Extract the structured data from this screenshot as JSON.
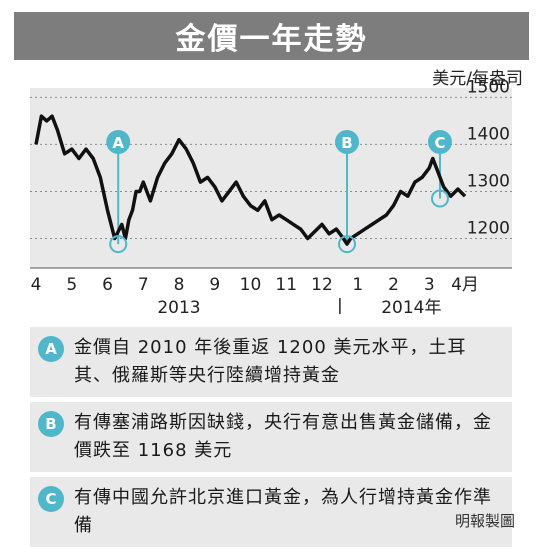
{
  "header": {
    "title": "金價一年走勢"
  },
  "chart_data": {
    "type": "line",
    "ylabel": "美元/每盎司",
    "ylim": [
      1168,
      1500
    ],
    "y_ticks": [
      1500,
      1400,
      1300,
      1200
    ],
    "grid": true,
    "x_categories": [
      "4",
      "5",
      "6",
      "7",
      "8",
      "9",
      "10",
      "11",
      "12",
      "1",
      "2",
      "3",
      "4月"
    ],
    "year_labels": [
      "2013",
      "2014年"
    ],
    "series": [
      {
        "color": "#111111",
        "x": [
          0.0,
          0.15,
          0.3,
          0.45,
          0.6,
          0.8,
          1.0,
          1.2,
          1.4,
          1.6,
          1.8,
          2.0,
          2.2,
          2.4,
          2.5,
          2.6,
          2.7,
          2.75,
          2.8,
          2.9,
          3.0,
          3.2,
          3.4,
          3.6,
          3.8,
          4.0,
          4.2,
          4.4,
          4.6,
          4.8,
          5.0,
          5.2,
          5.4,
          5.6,
          5.8,
          6.0,
          6.2,
          6.4,
          6.6,
          6.8,
          7.0,
          7.2,
          7.4,
          7.6,
          7.8,
          8.0,
          8.2,
          8.4,
          8.6,
          8.7,
          8.8,
          9.0,
          9.2,
          9.4,
          9.6,
          9.8,
          10.0,
          10.2,
          10.4,
          10.6,
          10.8,
          11.0,
          11.1,
          11.2,
          11.4,
          11.6,
          11.8,
          12.0
        ],
        "y": [
          1400,
          1460,
          1450,
          1460,
          1430,
          1380,
          1390,
          1370,
          1390,
          1370,
          1330,
          1260,
          1200,
          1230,
          1200,
          1240,
          1260,
          1280,
          1300,
          1300,
          1320,
          1280,
          1330,
          1360,
          1380,
          1410,
          1390,
          1360,
          1320,
          1330,
          1310,
          1280,
          1300,
          1320,
          1290,
          1270,
          1260,
          1280,
          1240,
          1250,
          1240,
          1230,
          1220,
          1200,
          1215,
          1230,
          1210,
          1220,
          1200,
          1188,
          1200,
          1210,
          1220,
          1230,
          1240,
          1250,
          1270,
          1300,
          1290,
          1320,
          1330,
          1350,
          1370,
          1350,
          1310,
          1290,
          1305,
          1290
        ]
      }
    ],
    "annotations": [
      {
        "label": "A",
        "x": 2.3,
        "y": 1188
      },
      {
        "label": "B",
        "x": 8.7,
        "y": 1188
      },
      {
        "label": "C",
        "x": 11.3,
        "y": 1285
      }
    ]
  },
  "notes": [
    {
      "marker": "A",
      "text": "金價自 2010 年後重返 1200 美元水平，土耳其、俄羅斯等央行陸續增持黃金"
    },
    {
      "marker": "B",
      "text": "有傳塞浦路斯因缺錢，央行有意出售黃金儲備，金價跌至 1168 美元"
    },
    {
      "marker": "C",
      "text": "有傳中國允許北京進口黃金，為人行增持黃金作準備"
    }
  ],
  "credit": "明報製圖",
  "colors": {
    "title_bg": "#7d7d7d",
    "panel_bg": "#e9e9e9",
    "accent": "#4fb7c9",
    "line": "#111111"
  }
}
